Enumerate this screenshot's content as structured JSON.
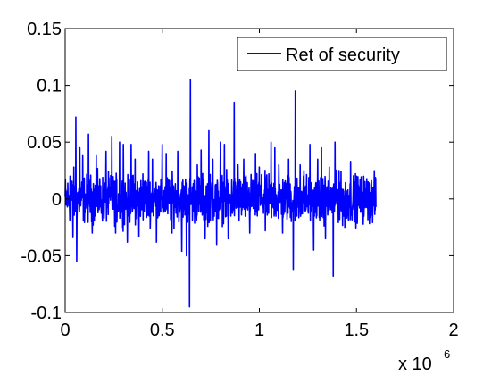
{
  "chart_data": {
    "type": "line",
    "title": "",
    "xlabel": "",
    "ylabel": "",
    "xlim": [
      0,
      2000000
    ],
    "ylim": [
      -0.1,
      0.15
    ],
    "x_ticks": [
      "0",
      "0.5",
      "1",
      "1.5",
      "2"
    ],
    "x_tick_values": [
      0,
      500000,
      1000000,
      1500000,
      2000000
    ],
    "y_ticks": [
      "-0.1",
      "-0.05",
      "0",
      "0.05",
      "0.1",
      "0.15"
    ],
    "y_tick_values": [
      -0.1,
      -0.05,
      0,
      0.05,
      0.1,
      0.15
    ],
    "x_exponent_base": "x 10",
    "x_exponent_power": "6",
    "legend_position": "top-right",
    "grid": false,
    "series": [
      {
        "name": "Ret of security",
        "color": "#0000ff",
        "x_range": [
          0,
          1600000
        ],
        "typical_abs_value": 0.01,
        "spikes": [
          {
            "x": 25000,
            "y": 0.02
          },
          {
            "x": 40000,
            "y": -0.034
          },
          {
            "x": 45000,
            "y": 0.028
          },
          {
            "x": 55000,
            "y": 0.072
          },
          {
            "x": 60000,
            "y": -0.055
          },
          {
            "x": 75000,
            "y": 0.045
          },
          {
            "x": 90000,
            "y": 0.038
          },
          {
            "x": 120000,
            "y": 0.057
          },
          {
            "x": 140000,
            "y": -0.03
          },
          {
            "x": 160000,
            "y": 0.038
          },
          {
            "x": 210000,
            "y": 0.042
          },
          {
            "x": 240000,
            "y": 0.055
          },
          {
            "x": 260000,
            "y": -0.03
          },
          {
            "x": 280000,
            "y": 0.05
          },
          {
            "x": 300000,
            "y": 0.048
          },
          {
            "x": 320000,
            "y": -0.038
          },
          {
            "x": 340000,
            "y": 0.048
          },
          {
            "x": 360000,
            "y": 0.035
          },
          {
            "x": 380000,
            "y": -0.033
          },
          {
            "x": 400000,
            "y": 0.022
          },
          {
            "x": 430000,
            "y": 0.042
          },
          {
            "x": 450000,
            "y": 0.035
          },
          {
            "x": 470000,
            "y": -0.038
          },
          {
            "x": 500000,
            "y": 0.048
          },
          {
            "x": 520000,
            "y": 0.04
          },
          {
            "x": 550000,
            "y": -0.03
          },
          {
            "x": 580000,
            "y": 0.042
          },
          {
            "x": 600000,
            "y": -0.046
          },
          {
            "x": 625000,
            "y": -0.05
          },
          {
            "x": 640000,
            "y": -0.095
          },
          {
            "x": 645000,
            "y": 0.105
          },
          {
            "x": 680000,
            "y": 0.03
          },
          {
            "x": 700000,
            "y": 0.043
          },
          {
            "x": 720000,
            "y": -0.035
          },
          {
            "x": 740000,
            "y": 0.06
          },
          {
            "x": 760000,
            "y": 0.035
          },
          {
            "x": 780000,
            "y": -0.04
          },
          {
            "x": 800000,
            "y": 0.05
          },
          {
            "x": 820000,
            "y": 0.048
          },
          {
            "x": 840000,
            "y": -0.035
          },
          {
            "x": 870000,
            "y": 0.085
          },
          {
            "x": 890000,
            "y": 0.03
          },
          {
            "x": 920000,
            "y": 0.035
          },
          {
            "x": 950000,
            "y": -0.03
          },
          {
            "x": 980000,
            "y": 0.04
          },
          {
            "x": 1000000,
            "y": 0.028
          },
          {
            "x": 1030000,
            "y": -0.028
          },
          {
            "x": 1060000,
            "y": 0.05
          },
          {
            "x": 1080000,
            "y": 0.045
          },
          {
            "x": 1100000,
            "y": 0.03
          },
          {
            "x": 1120000,
            "y": -0.03
          },
          {
            "x": 1150000,
            "y": 0.035
          },
          {
            "x": 1175000,
            "y": -0.062
          },
          {
            "x": 1185000,
            "y": 0.095
          },
          {
            "x": 1210000,
            "y": 0.03
          },
          {
            "x": 1230000,
            "y": 0.025
          },
          {
            "x": 1260000,
            "y": 0.048
          },
          {
            "x": 1280000,
            "y": -0.045
          },
          {
            "x": 1300000,
            "y": 0.035
          },
          {
            "x": 1320000,
            "y": 0.045
          },
          {
            "x": 1340000,
            "y": -0.035
          },
          {
            "x": 1360000,
            "y": 0.028
          },
          {
            "x": 1380000,
            "y": -0.068
          },
          {
            "x": 1390000,
            "y": 0.05
          },
          {
            "x": 1410000,
            "y": 0.025
          },
          {
            "x": 1440000,
            "y": -0.025
          },
          {
            "x": 1470000,
            "y": 0.033
          },
          {
            "x": 1500000,
            "y": 0.02
          },
          {
            "x": 1530000,
            "y": -0.02
          },
          {
            "x": 1560000,
            "y": 0.015
          },
          {
            "x": 1585000,
            "y": 0.01
          }
        ]
      }
    ]
  }
}
